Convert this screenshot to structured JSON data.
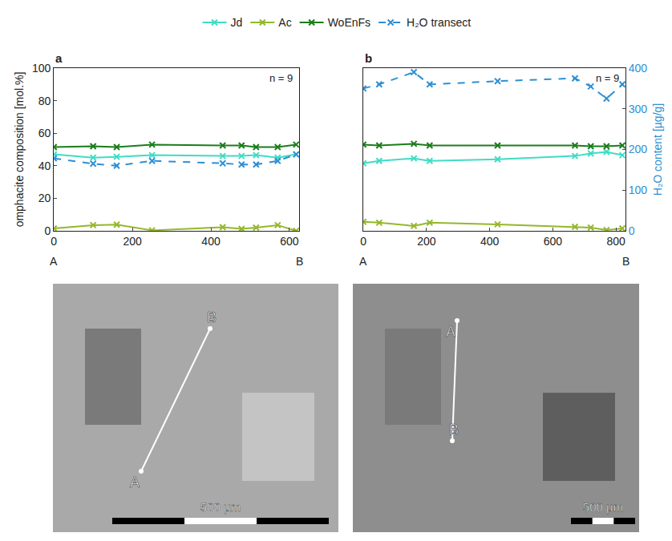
{
  "chart_data": [
    {
      "type": "line",
      "title": "a",
      "annotation": "n = 9",
      "legend": "top",
      "x": [
        0,
        100,
        160,
        250,
        430,
        478,
        515,
        570,
        617
      ],
      "x_end_labels": [
        "A",
        "B"
      ],
      "xlim": [
        0,
        625
      ],
      "xticks": [
        0,
        200,
        400,
        600
      ],
      "ylim": [
        0,
        100
      ],
      "yticks": [
        0,
        20,
        40,
        60,
        80,
        100
      ],
      "y_label": "omphacite composition [mol.%]",
      "y2lim": [
        0,
        400
      ],
      "series": [
        {
          "name": "Jd",
          "color": "#3fdcc4",
          "marker": "x",
          "line_style": "solid",
          "values": [
            47,
            45,
            45.5,
            46.5,
            46,
            46,
            46.5,
            45,
            47
          ]
        },
        {
          "name": "Ac",
          "color": "#93b82a",
          "marker": "x",
          "line_style": "solid",
          "values": [
            1.5,
            3.5,
            3.8,
            0.3,
            2.2,
            1.2,
            2,
            3.5,
            0
          ]
        },
        {
          "name": "WoEnFs",
          "color": "#1b7d1b",
          "marker": "x",
          "line_style": "solid",
          "values": [
            51.5,
            52,
            51.5,
            53,
            52.5,
            52.5,
            51.5,
            51.5,
            53
          ]
        },
        {
          "name": "H₂O transect",
          "color": "#2e8fd4",
          "marker": "x",
          "line_style": "dash",
          "axis": "y2",
          "values": [
            178,
            165,
            160,
            172,
            166,
            163,
            163,
            172,
            188
          ]
        }
      ]
    },
    {
      "type": "line",
      "title": "b",
      "annotation": "n = 9",
      "x": [
        0,
        50,
        160,
        210,
        425,
        670,
        720,
        770,
        820
      ],
      "x_end_labels": [
        "A",
        "B"
      ],
      "xlim": [
        0,
        830
      ],
      "xticks": [
        0,
        200,
        400,
        600,
        800
      ],
      "ylim": [
        0,
        100
      ],
      "y2lim": [
        0,
        400
      ],
      "y2ticks": [
        0,
        100,
        200,
        300,
        400
      ],
      "y2_label": "H₂O content [µg/g]",
      "series": [
        {
          "name": "Jd",
          "color": "#3fdcc4",
          "marker": "x",
          "line_style": "solid",
          "values": [
            41.5,
            43,
            44.5,
            43,
            44,
            46,
            47.5,
            48.5,
            46.5
          ]
        },
        {
          "name": "Ac",
          "color": "#93b82a",
          "marker": "x",
          "line_style": "solid",
          "values": [
            5.5,
            5,
            3,
            5,
            4,
            2.5,
            2,
            0.5,
            1.5
          ]
        },
        {
          "name": "WoEnFs",
          "color": "#1b7d1b",
          "marker": "x",
          "line_style": "solid",
          "values": [
            53,
            52.5,
            53.5,
            52.5,
            52.5,
            52.5,
            52,
            52,
            52.5
          ]
        },
        {
          "name": "H₂O transect",
          "color": "#2e8fd4",
          "marker": "x",
          "line_style": "dash",
          "axis": "y2",
          "values": [
            350,
            360,
            390,
            360,
            368,
            375,
            355,
            325,
            360
          ]
        }
      ]
    }
  ],
  "images": [
    {
      "start": "A",
      "end": "B",
      "scale_bar": "500 µm"
    },
    {
      "start": "A",
      "end": "B",
      "scale_bar": "500 µm"
    }
  ]
}
